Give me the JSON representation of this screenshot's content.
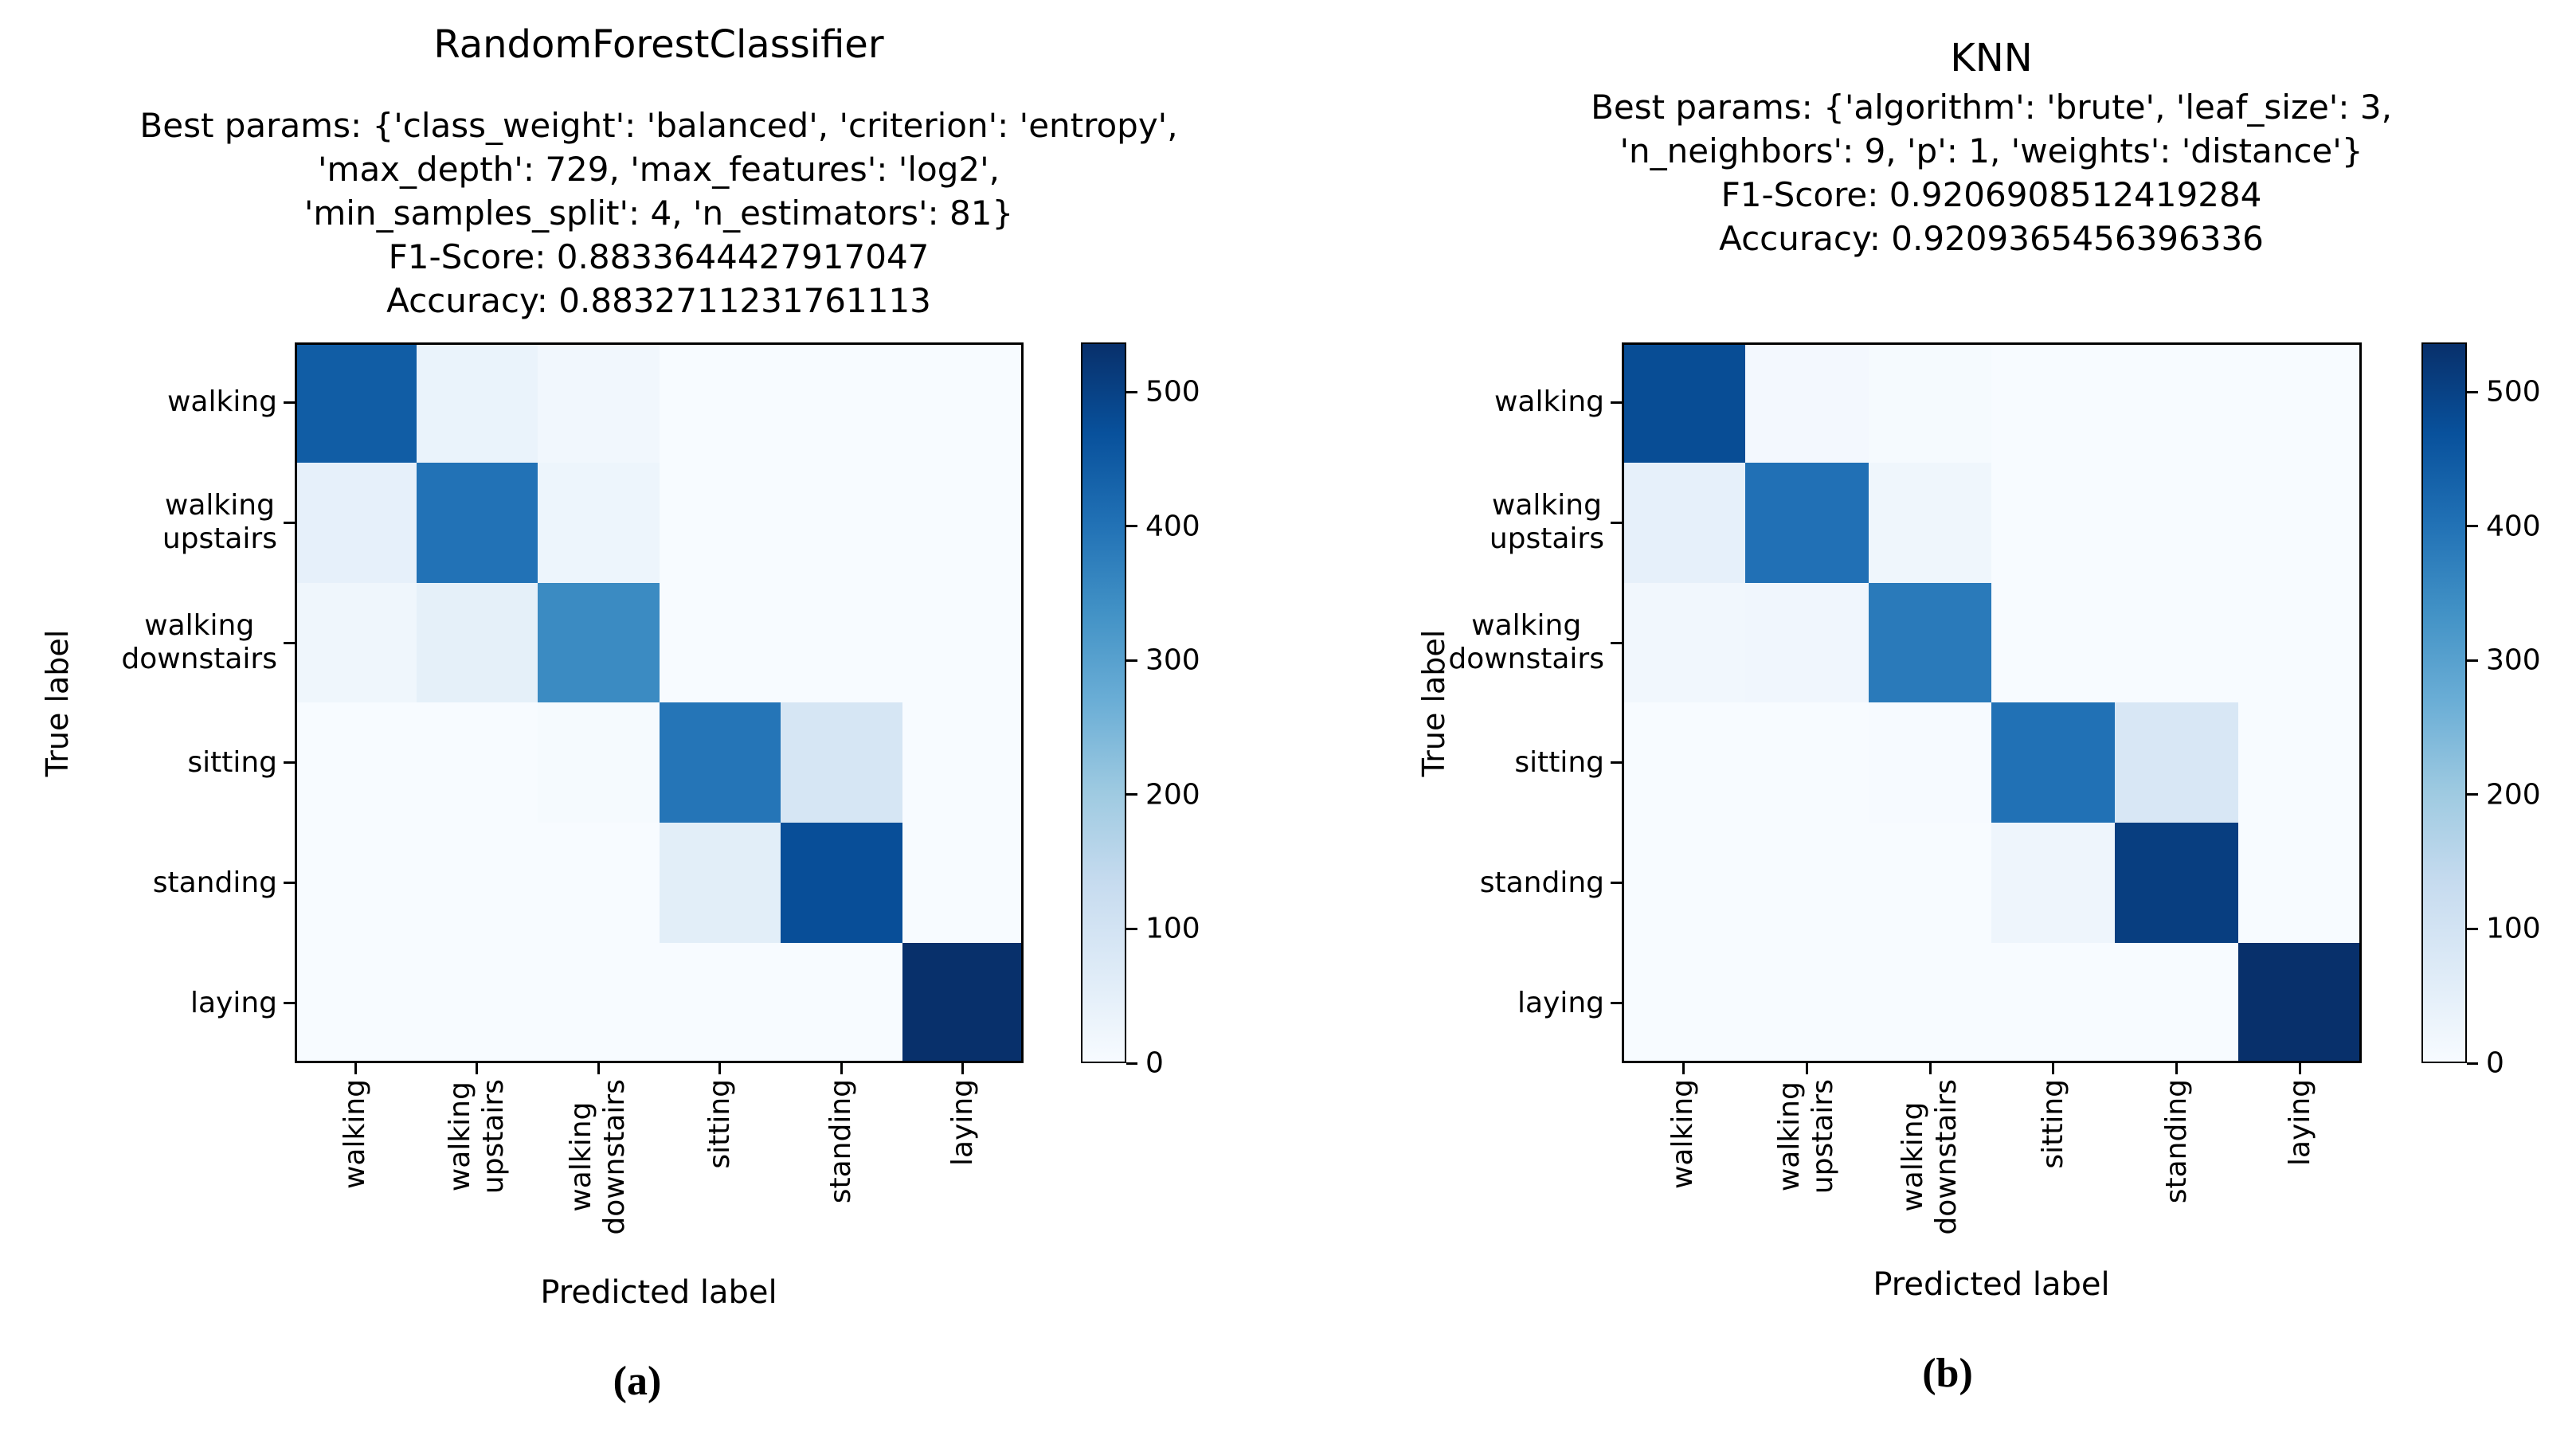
{
  "chart_data": [
    {
      "type": "heatmap",
      "caption": "(a)",
      "title": "RandomForestClassifier",
      "header_lines": [
        "Best params: {'class_weight': 'balanced', 'criterion': 'entropy',",
        "'max_depth': 729, 'max_features': 'log2',",
        "'min_samples_split': 4, 'n_estimators': 81}",
        "F1-Score: 0.8833644427917047",
        "Accuracy: 0.8832711231761113"
      ],
      "xlabel": "Predicted label",
      "ylabel": "True label",
      "categories": [
        "walking",
        "walking\nupstairs",
        "walking\ndownstairs",
        "sitting",
        "standing",
        "laying"
      ],
      "matrix": [
        [
          445,
          35,
          16,
          0,
          0,
          0
        ],
        [
          45,
          400,
          26,
          0,
          0,
          0
        ],
        [
          22,
          48,
          350,
          0,
          0,
          0
        ],
        [
          0,
          0,
          6,
          395,
          90,
          0
        ],
        [
          0,
          0,
          0,
          56,
          476,
          0
        ],
        [
          0,
          0,
          0,
          0,
          0,
          537
        ]
      ],
      "colorbar_ticks": [
        0,
        100,
        200,
        300,
        400,
        500
      ],
      "vmin": 0,
      "vmax": 537,
      "colormap": "Blues",
      "color_min": "#f7fbff",
      "color_max": "#08306b"
    },
    {
      "type": "heatmap",
      "caption": "(b)",
      "title": "KNN",
      "header_lines": [
        "Best params: {'algorithm': 'brute', 'leaf_size': 3,",
        "'n_neighbors': 9, 'p': 1, 'weights': 'distance'}",
        "F1-Score: 0.9206908512419284",
        "Accuracy: 0.9209365456396336"
      ],
      "xlabel": "Predicted label",
      "ylabel": "True label",
      "categories": [
        "walking",
        "walking\nupstairs",
        "walking\ndownstairs",
        "sitting",
        "standing",
        "laying"
      ],
      "matrix": [
        [
          479,
          12,
          5,
          0,
          0,
          0
        ],
        [
          45,
          404,
          22,
          0,
          0,
          0
        ],
        [
          17,
          19,
          384,
          0,
          0,
          0
        ],
        [
          0,
          0,
          4,
          402,
          85,
          0
        ],
        [
          0,
          0,
          0,
          24,
          508,
          0
        ],
        [
          0,
          0,
          0,
          0,
          0,
          537
        ]
      ],
      "colorbar_ticks": [
        0,
        100,
        200,
        300,
        400,
        500
      ],
      "vmin": 0,
      "vmax": 537,
      "colormap": "Blues",
      "color_min": "#f7fbff",
      "color_max": "#08306b"
    }
  ]
}
